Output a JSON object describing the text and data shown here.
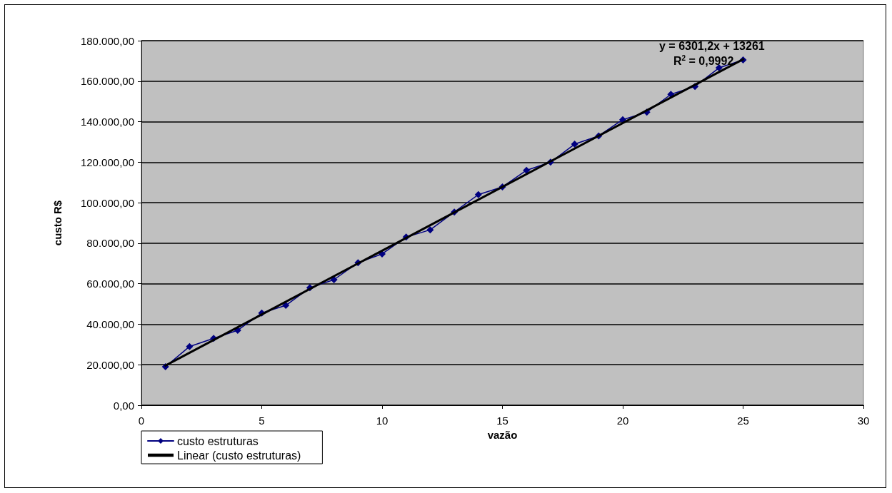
{
  "chart_data": {
    "type": "line",
    "xlabel": "vazão",
    "ylabel": "custo R$",
    "x": [
      1,
      2,
      3,
      4,
      5,
      6,
      7,
      8,
      9,
      10,
      11,
      12,
      13,
      14,
      15,
      16,
      17,
      18,
      19,
      20,
      21,
      22,
      23,
      24,
      25
    ],
    "series": [
      {
        "name": "custo estruturas",
        "color": "#000080",
        "marker": "diamond",
        "values": [
          19000,
          29000,
          33000,
          37000,
          45500,
          49300,
          58000,
          62000,
          70400,
          74700,
          83000,
          86600,
          95400,
          104000,
          107800,
          116000,
          120000,
          128900,
          133000,
          141000,
          144700,
          153500,
          157400,
          166600,
          170500
        ]
      },
      {
        "name": "Linear (custo estruturas)",
        "color": "#000000",
        "marker": "none",
        "x": [
          1,
          25
        ],
        "values": [
          19600,
          170800
        ]
      }
    ],
    "xlim": [
      0,
      30
    ],
    "xticks": [
      0,
      5,
      10,
      15,
      20,
      25,
      30
    ],
    "ylim": [
      0,
      180000
    ],
    "yticks": [
      {
        "value": 0,
        "label": "0,00"
      },
      {
        "value": 20000,
        "label": "20.000,00"
      },
      {
        "value": 40000,
        "label": "40.000,00"
      },
      {
        "value": 60000,
        "label": "60.000,00"
      },
      {
        "value": 80000,
        "label": "80.000,00"
      },
      {
        "value": 100000,
        "label": "100.000,00"
      },
      {
        "value": 120000,
        "label": "120.000,00"
      },
      {
        "value": 140000,
        "label": "140.000,00"
      },
      {
        "value": 160000,
        "label": "160.000,00"
      },
      {
        "value": 180000,
        "label": "180.000,00"
      }
    ],
    "grid": "y",
    "legend": "bottom left",
    "annotations": [
      "y = 6301,2x + 13261",
      "R$^{2}$ = 0,9992"
    ]
  }
}
